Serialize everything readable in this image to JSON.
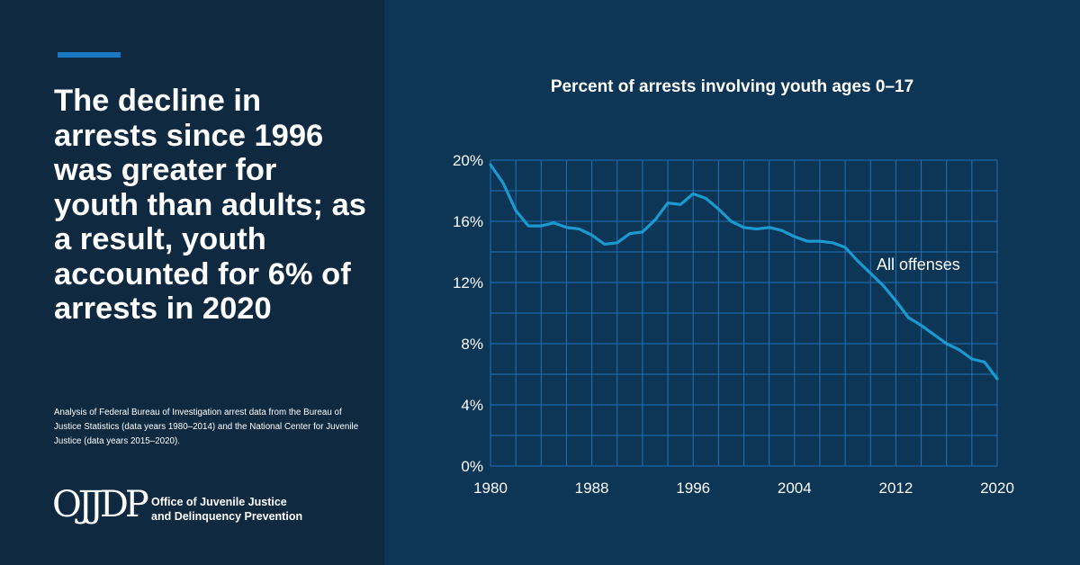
{
  "headline": "The decline in arrests since 1996 was greater for youth than adults; as a result, youth accounted for 6% of arrests in 2020",
  "source_note": "Analysis of Federal Bureau of Investigation arrest data from the Bureau of Justice Statistics (data years 1980–2014) and the National Center for Juvenile Justice (data years 2015–2020).",
  "logo": {
    "mark": "OJJDP",
    "line1": "Office of Juvenile Justice",
    "line2": "and Delinquency Prevention"
  },
  "colors": {
    "background": "#0c3556",
    "left_panel": "#0f2940",
    "accent": "#1a78c2",
    "series_line": "#1a9ad0",
    "grid": "#1f74b8"
  },
  "chart_data": {
    "type": "line",
    "title": "Percent of arrests involving youth ages 0–17",
    "xlabel": "",
    "ylabel": "",
    "xlim": [
      1980,
      2020
    ],
    "ylim": [
      0,
      20
    ],
    "x_ticks": [
      1980,
      1988,
      1996,
      2004,
      2012,
      2020
    ],
    "y_ticks": [
      0,
      4,
      8,
      12,
      16,
      20
    ],
    "y_tick_labels": [
      "0%",
      "4%",
      "8%",
      "12%",
      "16%",
      "20%"
    ],
    "grid": true,
    "series": [
      {
        "name": "All offenses",
        "x": [
          1980,
          1981,
          1982,
          1983,
          1984,
          1985,
          1986,
          1987,
          1988,
          1989,
          1990,
          1991,
          1992,
          1993,
          1994,
          1995,
          1996,
          1997,
          1998,
          1999,
          2000,
          2001,
          2002,
          2003,
          2004,
          2005,
          2006,
          2007,
          2008,
          2009,
          2010,
          2011,
          2012,
          2013,
          2014,
          2015,
          2016,
          2017,
          2018,
          2019,
          2020
        ],
        "values": [
          19.7,
          18.5,
          16.7,
          15.7,
          15.7,
          15.9,
          15.6,
          15.5,
          15.1,
          14.5,
          14.6,
          15.2,
          15.3,
          16.1,
          17.2,
          17.1,
          17.8,
          17.5,
          16.8,
          16.0,
          15.6,
          15.5,
          15.6,
          15.4,
          15.0,
          14.7,
          14.7,
          14.6,
          14.3,
          13.4,
          12.6,
          11.8,
          10.8,
          9.7,
          9.2,
          8.6,
          8.0,
          7.6,
          7.0,
          6.8,
          5.7
        ]
      }
    ]
  }
}
